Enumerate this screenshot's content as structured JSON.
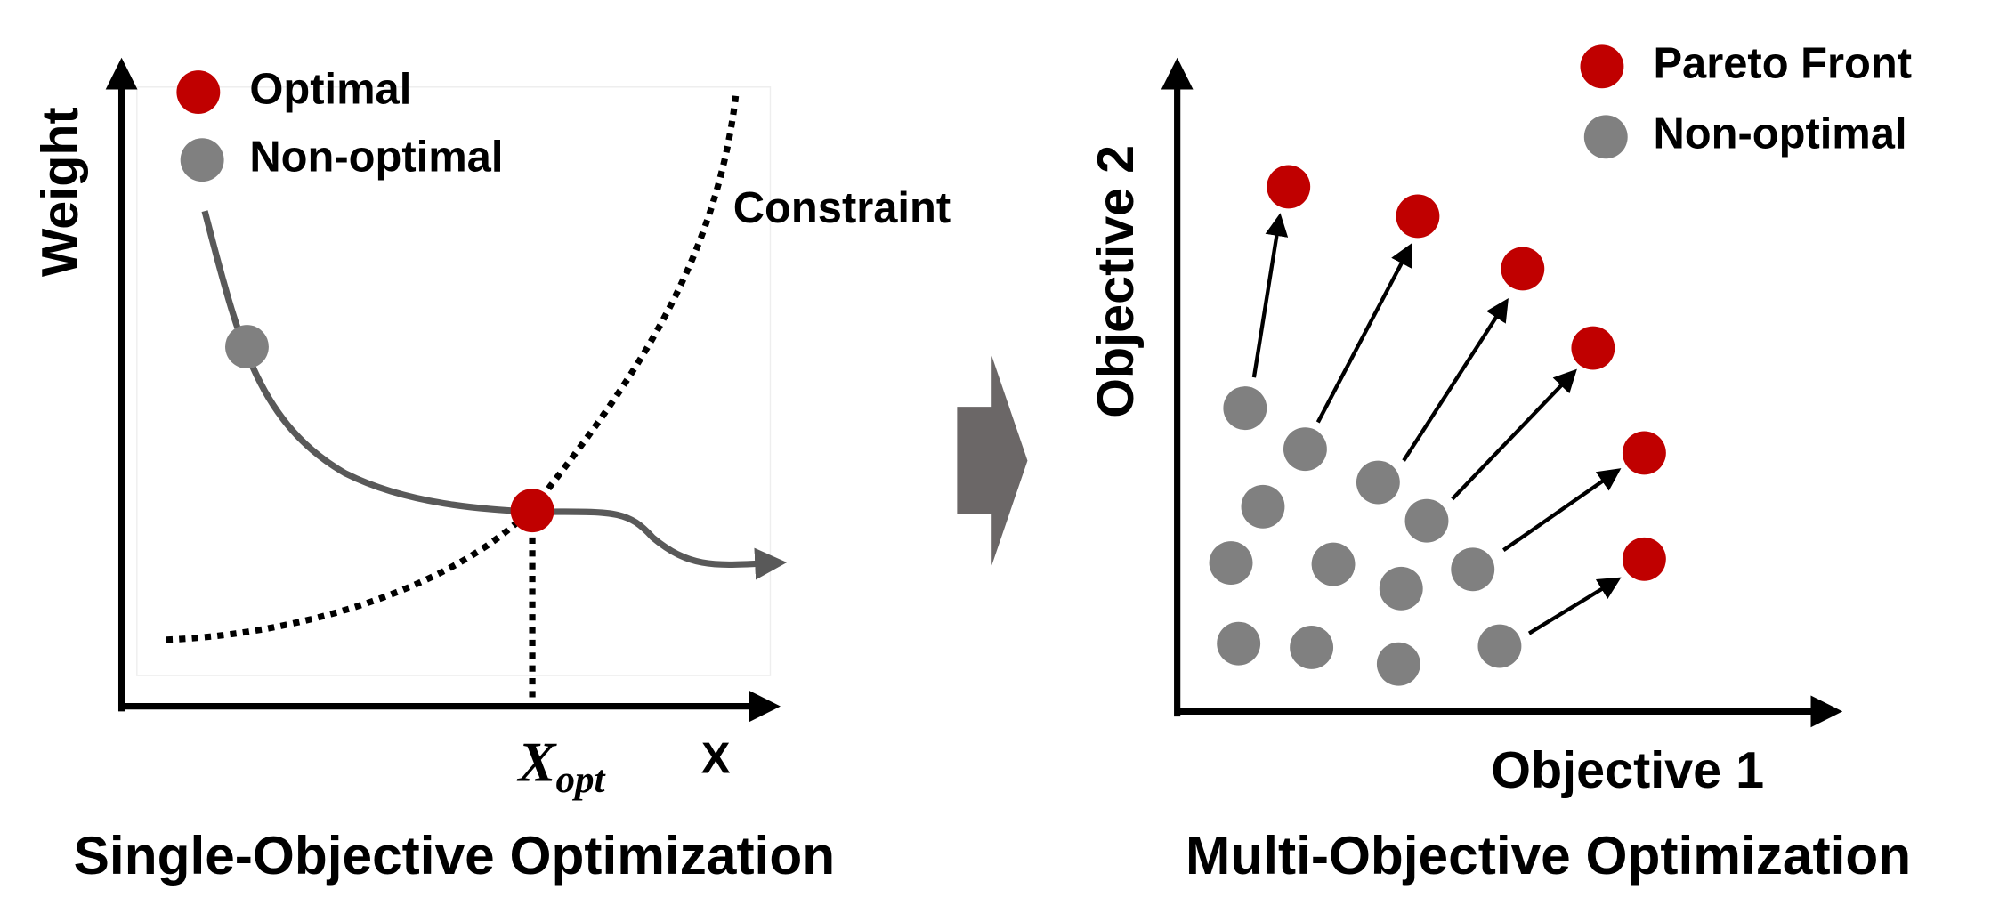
{
  "left_panel": {
    "title": "Single-Objective Optimization",
    "y_axis_label": "Weight",
    "x_axis_label": "X",
    "x_marker": {
      "base": "X",
      "subscript": "opt"
    },
    "legend": [
      "Optimal",
      "Non-optimal"
    ],
    "constraint_label": "Constraint"
  },
  "right_panel": {
    "title": "Multi-Objective Optimization",
    "y_axis_label": "Objective 2",
    "x_axis_label": "Objective 1",
    "legend": [
      "Pareto Front",
      "Non-optimal"
    ]
  }
}
